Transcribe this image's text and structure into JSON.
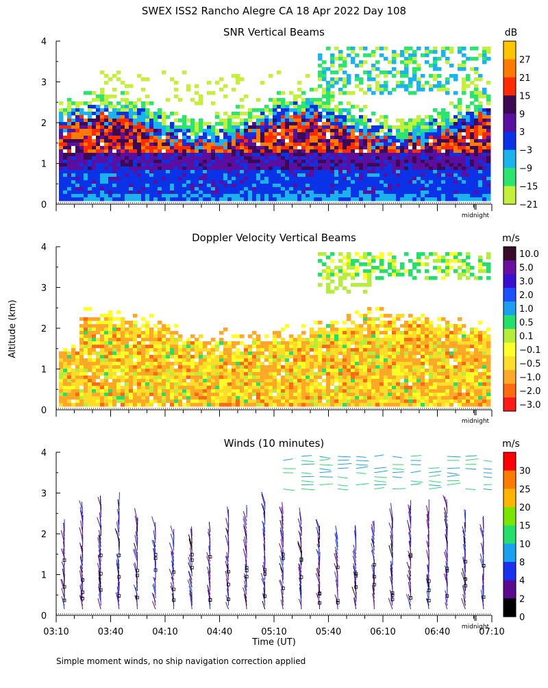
{
  "page_title": "SWEX ISS2 Rancho Alegre CA  18 Apr 2022 Day 108",
  "footnote": "Simple moment winds, no ship navigation correction applied",
  "y_axis_label": "Altitude (km)",
  "x_axis_label": "Time (UT)",
  "midnight_label": "midnight",
  "chart_data": [
    {
      "type": "heatmap",
      "title": "SNR Vertical Beams",
      "units": "dB",
      "xlabel": "",
      "ylabel": "",
      "ylim": [
        0,
        4
      ],
      "yticks": [
        "0",
        "1",
        "2",
        "3",
        "4"
      ],
      "colorbar": {
        "labels": [
          "27",
          "21",
          "15",
          "9",
          "3",
          "−3",
          "−9",
          "−15",
          "−21"
        ],
        "colors": [
          "#ffc400",
          "#ff7a00",
          "#ff2a00",
          "#3c0a54",
          "#5a0fa0",
          "#0a32e6",
          "#19b4f0",
          "#2ae66e",
          "#c4f03c"
        ]
      },
      "features": {
        "base_band_top_km": 1.3,
        "cloud_layer_km": [
          2.7,
          3.9
        ]
      }
    },
    {
      "type": "heatmap",
      "title": "Doppler Velocity Vertical Beams",
      "units": "m/s",
      "xlabel": "",
      "ylabel": "Altitude (km)",
      "ylim": [
        0,
        4
      ],
      "yticks": [
        "0",
        "1",
        "2",
        "3",
        "4"
      ],
      "colorbar": {
        "labels": [
          "10.0",
          "5.0",
          "3.0",
          "2.0",
          "1.0",
          "0.5",
          "0.1",
          "−0.1",
          "−0.5",
          "−1.0",
          "−2.0",
          "−3.0"
        ],
        "colors": [
          "#3a0a2a",
          "#6a0fa0",
          "#3a10d0",
          "#1a50ff",
          "#1aa0f0",
          "#22e06a",
          "#b4ee3a",
          "#ffff28",
          "#ffdc28",
          "#ffa828",
          "#ff6a10",
          "#ff1a1a"
        ]
      },
      "features": {
        "fill_top_km": 2.1,
        "cloud_layer_km": [
          3.2,
          3.9
        ]
      }
    },
    {
      "type": "scatter",
      "title": "Winds (10 minutes)",
      "units": "m/s",
      "xlabel": "Time (UT)",
      "ylabel": "",
      "ylim": [
        0,
        4
      ],
      "yticks": [
        "0",
        "1",
        "2",
        "3",
        "4"
      ],
      "x_ticks": [
        "03:10",
        "03:40",
        "04:10",
        "04:40",
        "05:10",
        "05:40",
        "06:10",
        "06:40",
        "07:10"
      ],
      "colorbar": {
        "labels": [
          "30",
          "25",
          "20",
          "15",
          "10",
          "8",
          "4",
          "2",
          "0"
        ],
        "colors": [
          "#ff0000",
          "#ff7a00",
          "#ffb400",
          "#7ae600",
          "#22e06a",
          "#19a0f0",
          "#1a32f0",
          "#5a0a90",
          "#000000"
        ]
      },
      "profiles_count": 24,
      "features": {
        "low_level_top_km": 2.4,
        "upper_winds_km": [
          2.8,
          4.0
        ]
      }
    }
  ]
}
